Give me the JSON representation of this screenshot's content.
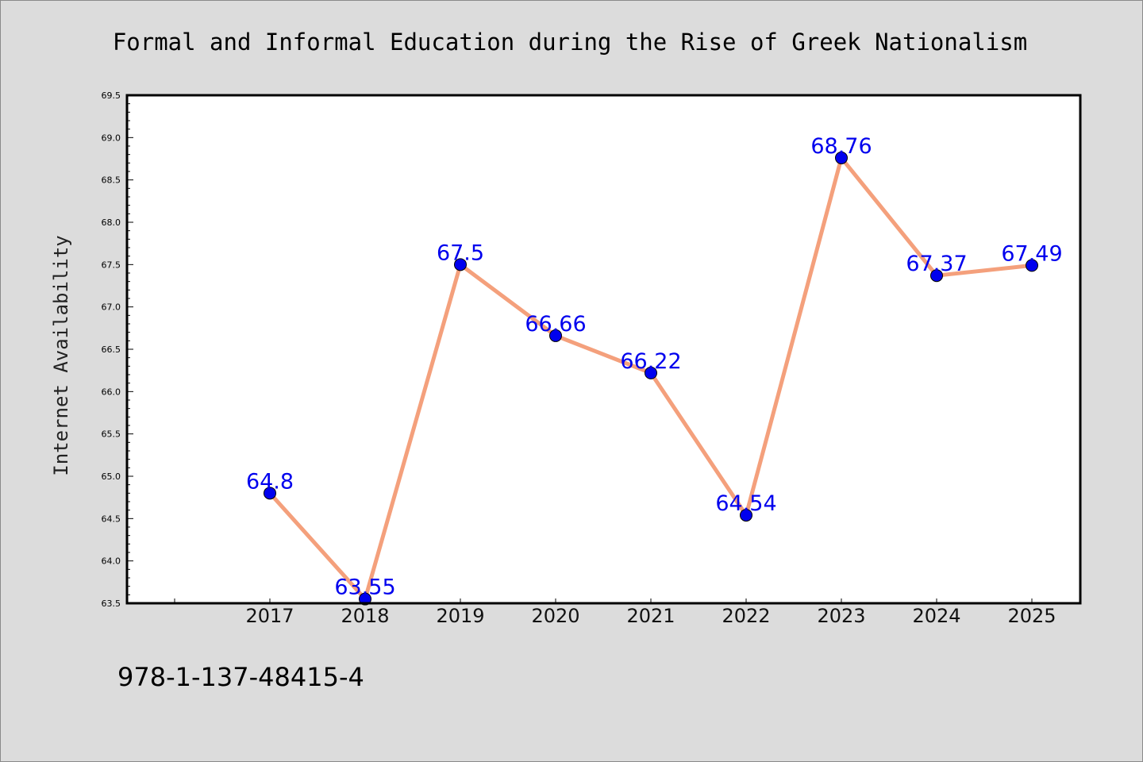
{
  "chart_data": {
    "type": "line",
    "title": "Formal and Informal Education during the Rise of Greek Nationalism",
    "xlabel": "",
    "ylabel": "Internet Availability",
    "categories": [
      "2017",
      "2018",
      "2019",
      "2020",
      "2021",
      "2022",
      "2023",
      "2024",
      "2025"
    ],
    "series": [
      {
        "values": [
          64.8,
          63.55,
          67.5,
          66.66,
          66.22,
          64.54,
          68.76,
          67.37,
          67.49
        ]
      }
    ],
    "data_labels": [
      "64.8",
      "63.55",
      "67.5",
      "66.66",
      "66.22",
      "64.54",
      "68.76",
      "67.37",
      "67.49"
    ],
    "ylim": [
      63.5,
      69.5
    ],
    "yticks": [
      "63.5",
      "64.0",
      "64.5",
      "65.0",
      "65.5",
      "66.0",
      "66.5",
      "67.0",
      "67.5",
      "68.0",
      "68.5",
      "69.0",
      "69.5"
    ],
    "grid": false,
    "legend": "none",
    "colors": {
      "line": "#f4a07c",
      "marker": "#0000ee",
      "label": "#0000ee",
      "background": "#dcdcdc",
      "plot_area": "#ffffff"
    }
  },
  "footer": {
    "isbn": "978-1-137-48415-4"
  }
}
